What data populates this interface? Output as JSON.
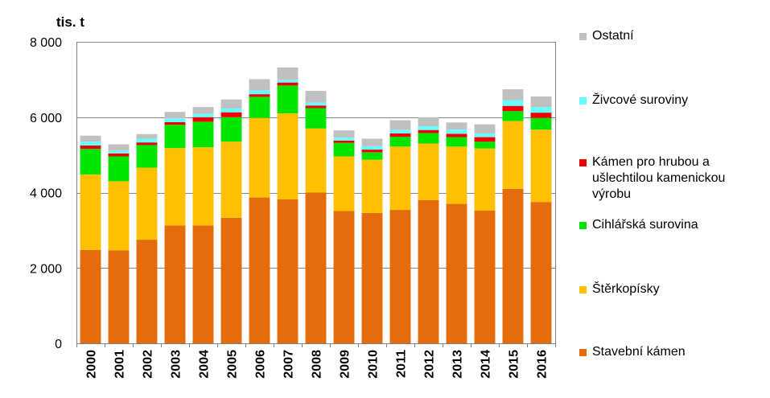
{
  "chart_data": {
    "type": "bar",
    "stacked": true,
    "unit_label": "tis. t",
    "categories": [
      "2000",
      "2001",
      "2002",
      "2003",
      "2004",
      "2005",
      "2006",
      "2007",
      "2008",
      "2009",
      "2010",
      "2011",
      "2012",
      "2013",
      "2014",
      "2015",
      "2016"
    ],
    "ylim": [
      0,
      8000
    ],
    "yticks": [
      {
        "value": 0,
        "label": "0"
      },
      {
        "value": 2000,
        "label": "2 000"
      },
      {
        "value": 4000,
        "label": "4 000"
      },
      {
        "value": 6000,
        "label": "6 000"
      },
      {
        "value": 8000,
        "label": "8 000"
      }
    ],
    "grid": true,
    "legend_position": "right",
    "series": [
      {
        "name": "Stavební kámen",
        "color": "#E46C0A",
        "values": [
          2480,
          2470,
          2750,
          3130,
          3130,
          3330,
          3870,
          3820,
          4000,
          3510,
          3460,
          3540,
          3800,
          3700,
          3520,
          4100,
          3750
        ]
      },
      {
        "name": "Štěrkopísky",
        "color": "#FFC000",
        "values": [
          2000,
          1830,
          1910,
          2050,
          2070,
          2020,
          2110,
          2280,
          1700,
          1450,
          1410,
          1680,
          1500,
          1520,
          1650,
          1800,
          1920
        ]
      },
      {
        "name": "Cihlářská surovina",
        "color": "#00E400",
        "values": [
          680,
          660,
          600,
          620,
          680,
          650,
          560,
          740,
          540,
          360,
          200,
          260,
          280,
          250,
          180,
          260,
          310
        ]
      },
      {
        "name": "Kámen pro hrubou a ušlechtilou kamenickou výrobu",
        "color": "#EE0000",
        "values": [
          90,
          80,
          70,
          70,
          120,
          130,
          70,
          80,
          70,
          60,
          70,
          90,
          80,
          90,
          120,
          140,
          140
        ]
      },
      {
        "name": "Živcové suroviny",
        "color": "#66FFFF",
        "values": [
          100,
          70,
          100,
          100,
          90,
          100,
          100,
          70,
          80,
          80,
          90,
          90,
          100,
          110,
          100,
          150,
          150
        ]
      },
      {
        "name": "Ostatní",
        "color": "#C0C0C0",
        "values": [
          160,
          170,
          120,
          170,
          180,
          240,
          300,
          330,
          310,
          190,
          200,
          260,
          240,
          190,
          240,
          290,
          280
        ]
      }
    ]
  }
}
